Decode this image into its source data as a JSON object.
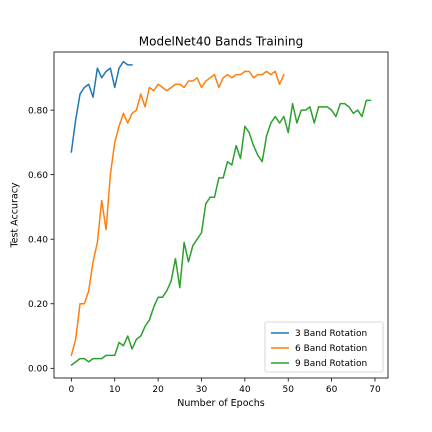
{
  "chart_data": {
    "type": "line",
    "title": "ModelNet40 Bands Training",
    "xlabel": "Number of Epochs",
    "ylabel": "Test Accuracy",
    "xlim": [
      -4,
      73
    ],
    "ylim": [
      -0.03,
      0.98
    ],
    "xticks": [
      0,
      10,
      20,
      30,
      40,
      50,
      60,
      70
    ],
    "xtick_labels": [
      "0",
      "10",
      "20",
      "30",
      "40",
      "50",
      "60",
      "70"
    ],
    "yticks": [
      0.0,
      0.2,
      0.4,
      0.6,
      0.8
    ],
    "ytick_labels": [
      "0.00",
      "0.20",
      "0.40",
      "0.60",
      "0.80"
    ],
    "grid": false,
    "legend_position": "lower-right",
    "series": [
      {
        "name": "3 Band Rotation",
        "color": "#1f77b4",
        "x": [
          0,
          1,
          2,
          3,
          4,
          5,
          6,
          7,
          8,
          9,
          10,
          11,
          12,
          13,
          14
        ],
        "y": [
          0.67,
          0.77,
          0.85,
          0.87,
          0.88,
          0.84,
          0.93,
          0.9,
          0.92,
          0.93,
          0.87,
          0.93,
          0.95,
          0.94,
          0.94
        ]
      },
      {
        "name": "6 Band Rotation",
        "color": "#ff7f0e",
        "x": [
          0,
          1,
          2,
          3,
          4,
          5,
          6,
          7,
          8,
          9,
          10,
          11,
          12,
          13,
          14,
          15,
          16,
          17,
          18,
          19,
          20,
          21,
          22,
          23,
          24,
          25,
          26,
          27,
          28,
          29,
          30,
          31,
          32,
          33,
          34,
          35,
          36,
          37,
          38,
          39,
          40,
          41,
          42,
          43,
          44,
          45,
          46,
          47,
          48,
          49
        ],
        "y": [
          0.04,
          0.09,
          0.2,
          0.2,
          0.24,
          0.33,
          0.39,
          0.52,
          0.43,
          0.6,
          0.7,
          0.75,
          0.79,
          0.76,
          0.79,
          0.8,
          0.85,
          0.81,
          0.87,
          0.86,
          0.88,
          0.87,
          0.86,
          0.87,
          0.88,
          0.88,
          0.87,
          0.89,
          0.89,
          0.9,
          0.87,
          0.89,
          0.9,
          0.91,
          0.87,
          0.9,
          0.91,
          0.9,
          0.91,
          0.91,
          0.92,
          0.92,
          0.9,
          0.91,
          0.91,
          0.92,
          0.91,
          0.92,
          0.88,
          0.91
        ]
      },
      {
        "name": "9 Band Rotation",
        "color": "#2ca02c",
        "x": [
          0,
          1,
          2,
          3,
          4,
          5,
          6,
          7,
          8,
          9,
          10,
          11,
          12,
          13,
          14,
          15,
          16,
          17,
          18,
          19,
          20,
          21,
          22,
          23,
          24,
          25,
          26,
          27,
          28,
          29,
          30,
          31,
          32,
          33,
          34,
          35,
          36,
          37,
          38,
          39,
          40,
          41,
          42,
          43,
          44,
          45,
          46,
          47,
          48,
          49,
          50,
          51,
          52,
          53,
          54,
          55,
          56,
          57,
          58,
          59,
          60,
          61,
          62,
          63,
          64,
          65,
          66,
          67,
          68,
          69
        ],
        "y": [
          0.01,
          0.02,
          0.03,
          0.03,
          0.02,
          0.03,
          0.03,
          0.03,
          0.04,
          0.04,
          0.04,
          0.08,
          0.07,
          0.1,
          0.06,
          0.09,
          0.1,
          0.13,
          0.15,
          0.19,
          0.22,
          0.22,
          0.24,
          0.27,
          0.34,
          0.25,
          0.39,
          0.33,
          0.38,
          0.4,
          0.42,
          0.51,
          0.53,
          0.53,
          0.59,
          0.59,
          0.64,
          0.63,
          0.69,
          0.65,
          0.75,
          0.73,
          0.69,
          0.66,
          0.64,
          0.72,
          0.76,
          0.78,
          0.76,
          0.78,
          0.73,
          0.82,
          0.76,
          0.8,
          0.8,
          0.81,
          0.76,
          0.81,
          0.81,
          0.81,
          0.8,
          0.78,
          0.82,
          0.82,
          0.81,
          0.79,
          0.8,
          0.78,
          0.83,
          0.83
        ]
      }
    ]
  }
}
